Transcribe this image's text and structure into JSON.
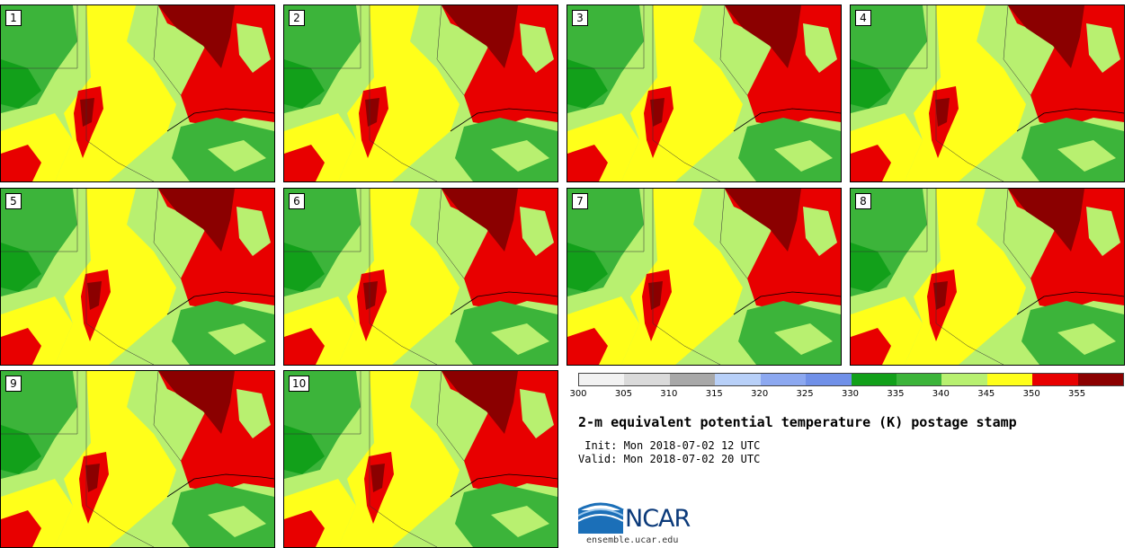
{
  "panels": [
    "1",
    "2",
    "3",
    "4",
    "5",
    "6",
    "7",
    "8",
    "9",
    "10"
  ],
  "colorbar": {
    "ticks": [
      "300",
      "305",
      "310",
      "315",
      "320",
      "325",
      "330",
      "335",
      "340",
      "345",
      "350",
      "355"
    ],
    "colors": [
      "#f2f2f2",
      "#dadada",
      "#a8a8a8",
      "#b8d0f8",
      "#8ca8f0",
      "#7090e8",
      "#12a01a",
      "#3cb43a",
      "#b8f070",
      "#ffff1a",
      "#e80000",
      "#8b0000"
    ]
  },
  "title": "2-m equivalent potential temperature (K) postage stamp",
  "init": " Init: Mon 2018-07-02 12 UTC",
  "valid": "Valid: Mon 2018-07-02 20 UTC",
  "logo": {
    "name": "NCAR",
    "site": "ensemble.ucar.edu"
  }
}
